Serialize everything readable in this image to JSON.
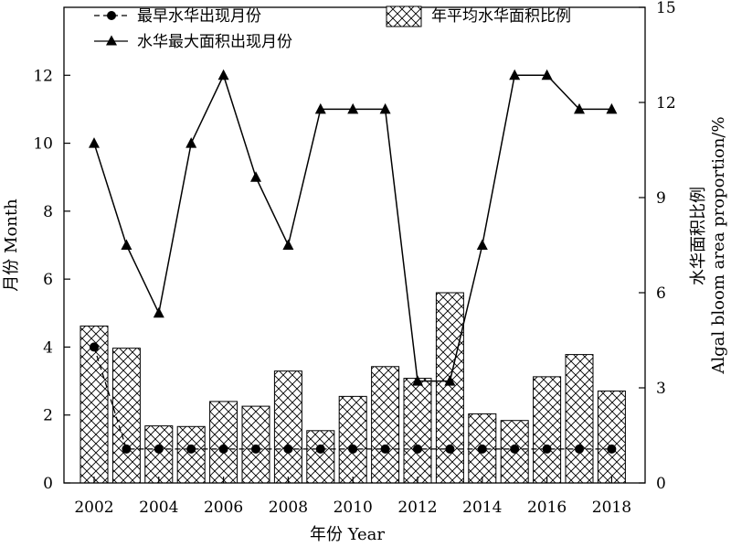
{
  "chart_data": {
    "type": "bar",
    "x": [
      2002,
      2003,
      2004,
      2005,
      2006,
      2007,
      2008,
      2009,
      2010,
      2011,
      2012,
      2013,
      2014,
      2015,
      2016,
      2017,
      2018
    ],
    "xlabel": "年份 Year",
    "ylabel_left": "月份 Month",
    "ylabel_right_cn": "水华面积比例",
    "ylabel_right_en": "Algal bloom area proportion/%",
    "ylim_left": [
      0,
      14
    ],
    "ylim_right": [
      0,
      15
    ],
    "xticks": [
      "2002",
      "2004",
      "2006",
      "2008",
      "2010",
      "2012",
      "2014",
      "2016",
      "2018"
    ],
    "yticks_left": [
      "0",
      "2",
      "4",
      "6",
      "8",
      "10",
      "12"
    ],
    "yticks_right": [
      "0",
      "3",
      "6",
      "9",
      "12",
      "15"
    ],
    "grid": false,
    "legend_position": "top",
    "series": [
      {
        "name": "年平均水华面积比例",
        "kind": "bar",
        "axis": "right",
        "pattern": "crosshatch",
        "values": [
          4.95,
          4.25,
          1.8,
          1.78,
          2.57,
          2.42,
          3.53,
          1.65,
          2.73,
          3.67,
          3.3,
          6.0,
          2.18,
          1.97,
          3.35,
          4.05,
          2.9
        ]
      },
      {
        "name": "最早水华出现月份",
        "kind": "line",
        "axis": "left",
        "line_style": "dashed",
        "marker": "circle",
        "values": [
          4,
          1,
          1,
          1,
          1,
          1,
          1,
          1,
          1,
          1,
          1,
          1,
          1,
          1,
          1,
          1,
          1
        ]
      },
      {
        "name": "水华最大面积出现月份",
        "kind": "line",
        "axis": "left",
        "line_style": "solid",
        "marker": "triangle",
        "values": [
          10,
          7,
          5,
          10,
          12,
          9,
          7,
          11,
          11,
          11,
          3,
          3,
          7,
          12,
          12,
          11,
          11
        ]
      }
    ]
  }
}
